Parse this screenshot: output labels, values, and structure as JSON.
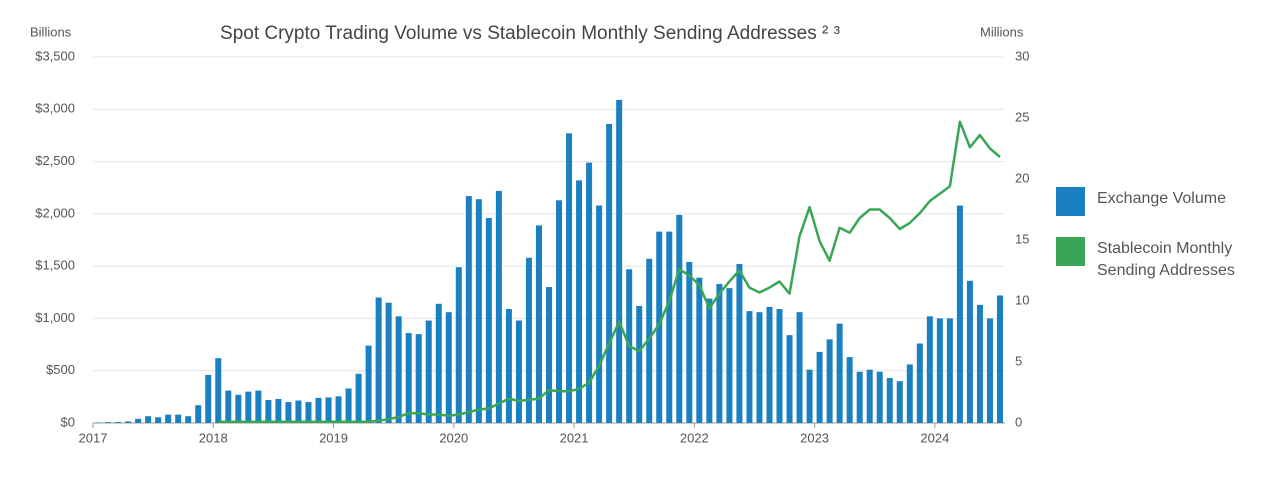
{
  "chart_data": {
    "type": "bar_line",
    "title": "Spot Crypto Trading Volume vs Stablecoin Monthly Sending Addresses ² ³",
    "y_label": "Billions",
    "y2_label": "Millions",
    "categories": [
      "2017",
      null,
      null,
      null,
      null,
      null,
      null,
      null,
      null,
      null,
      null,
      null,
      "2018",
      null,
      null,
      null,
      null,
      null,
      null,
      null,
      null,
      null,
      null,
      null,
      "2019",
      null,
      null,
      null,
      null,
      null,
      null,
      null,
      null,
      null,
      null,
      null,
      "2020",
      null,
      null,
      null,
      null,
      null,
      null,
      null,
      null,
      null,
      null,
      null,
      "2021",
      null,
      null,
      null,
      null,
      null,
      null,
      null,
      null,
      null,
      null,
      null,
      "2022",
      null,
      null,
      null,
      null,
      null,
      null,
      null,
      null,
      null,
      null,
      null,
      "2023",
      null,
      null,
      null,
      null,
      null,
      null,
      null,
      null,
      null,
      null,
      null,
      "2024",
      null,
      null,
      null,
      null,
      null,
      null
    ],
    "series": [
      {
        "name": "Exchange Volume",
        "color": "#1b80c2",
        "axis": "y",
        "kind": "bar",
        "values": [
          5,
          8,
          10,
          15,
          40,
          65,
          55,
          80,
          80,
          65,
          170,
          460,
          620,
          310,
          270,
          300,
          310,
          220,
          230,
          200,
          215,
          200,
          240,
          245,
          255,
          330,
          470,
          740,
          1200,
          1150,
          1020,
          860,
          850,
          980,
          1140,
          1060,
          1490,
          2170,
          2140,
          1960,
          2220,
          1090,
          980,
          1580,
          1890,
          1300,
          2130,
          2770,
          2320,
          2490,
          2080,
          2860,
          3090,
          1470,
          1120,
          1570,
          1830,
          1830,
          1990,
          1540,
          1390,
          1190,
          1330,
          1290,
          1520,
          1070,
          1060,
          1110,
          1090,
          840,
          1060,
          510,
          680,
          800,
          950,
          630,
          490,
          510,
          490,
          430,
          400,
          560,
          760,
          1020,
          1000,
          1000,
          2080,
          1360,
          1130,
          1000,
          1220
        ]
      },
      {
        "name": "Stablecoin Monthly Sending Addresses",
        "color": "#3aa655",
        "axis": "y2",
        "kind": "line",
        "values": [
          null,
          null,
          null,
          null,
          null,
          null,
          null,
          null,
          null,
          null,
          null,
          null,
          0.1,
          0.1,
          0.1,
          0.1,
          0.1,
          0.1,
          0.1,
          0.1,
          0.1,
          0.1,
          0.1,
          0.1,
          0.1,
          0.1,
          0.1,
          0.1,
          0.2,
          0.3,
          0.5,
          0.8,
          0.8,
          0.7,
          0.7,
          0.6,
          0.7,
          0.9,
          1.1,
          1.2,
          1.6,
          2.0,
          1.8,
          1.9,
          2.0,
          2.7,
          2.6,
          2.6,
          2.8,
          3.3,
          4.7,
          6.5,
          8.3,
          6.3,
          5.9,
          6.9,
          8.1,
          10.0,
          12.6,
          12.1,
          11.3,
          9.4,
          10.6,
          11.6,
          12.5,
          11.1,
          10.7,
          11.1,
          11.6,
          10.6,
          15.3,
          17.7,
          14.9,
          13.3,
          16.0,
          15.6,
          16.8,
          17.5,
          17.5,
          16.8,
          15.9,
          16.4,
          17.2,
          18.2,
          18.8,
          19.4,
          24.7,
          22.6,
          23.6,
          22.5,
          21.8
        ]
      }
    ],
    "ylim": [
      0,
      3500
    ],
    "yticks": [
      {
        "value": 0,
        "label": "$0"
      },
      {
        "value": 500,
        "label": "$500"
      },
      {
        "value": 1000,
        "label": "$1,000"
      },
      {
        "value": 1500,
        "label": "$1,500"
      },
      {
        "value": 2000,
        "label": "$2,000"
      },
      {
        "value": 2500,
        "label": "$2,500"
      },
      {
        "value": 3000,
        "label": "$3,000"
      },
      {
        "value": 3500,
        "label": "$3,500"
      }
    ],
    "y2lim": [
      0,
      30
    ],
    "y2ticks": [
      0,
      5,
      10,
      15,
      20,
      25,
      30
    ],
    "grid": true,
    "legend": "right"
  }
}
